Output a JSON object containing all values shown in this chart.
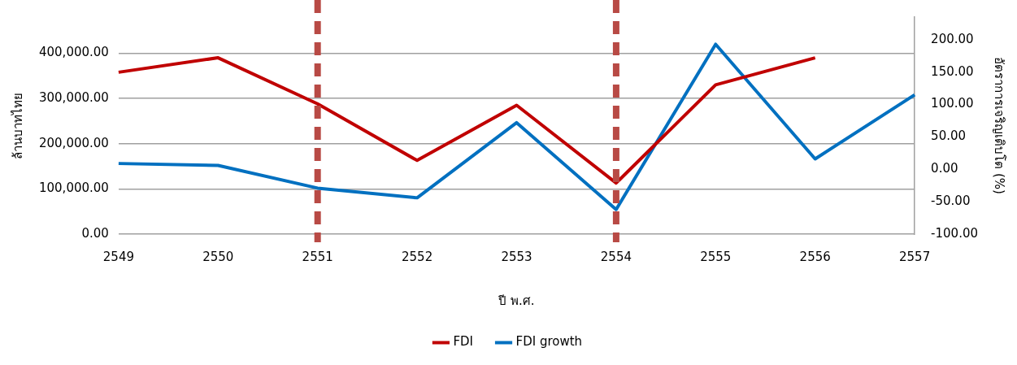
{
  "chart_data": {
    "type": "line",
    "xlabel": "ปี พ.ศ.",
    "ylabel": "ล้านบาทไทย",
    "y2label": "อัตราการเจริญเติบโต (%)",
    "categories": [
      "2549",
      "2550",
      "2551",
      "2552",
      "2553",
      "2554",
      "2555",
      "2556",
      "2557"
    ],
    "series": [
      {
        "name": "FDI",
        "color": "#c00000",
        "values": [
          358000,
          390000,
          288000,
          163000,
          285000,
          113000,
          330000,
          390000,
          null
        ]
      },
      {
        "name": "FDI growth",
        "color": "#0070c0",
        "axis": "y2",
        "values": [
          9,
          6,
          -29,
          -44,
          72,
          -62,
          193,
          16,
          115
        ]
      }
    ],
    "ylim": [
      0,
      480000
    ],
    "yticks": [
      {
        "value": 0,
        "label": "0.00"
      },
      {
        "value": 100000,
        "label": "100,000.00"
      },
      {
        "value": 200000,
        "label": "200,000.00"
      },
      {
        "value": 300000,
        "label": "300,000.00"
      },
      {
        "value": 400000,
        "label": "400,000.00"
      }
    ],
    "y2lim": [
      -100,
      235
    ],
    "y2ticks": [
      {
        "value": -100,
        "label": "-100.00"
      },
      {
        "value": -50,
        "label": "-50.00"
      },
      {
        "value": 0,
        "label": "0.00"
      },
      {
        "value": 50,
        "label": "50.00"
      },
      {
        "value": 100,
        "label": "100.00"
      },
      {
        "value": 150,
        "label": "150.00"
      },
      {
        "value": 200,
        "label": "200.00"
      }
    ],
    "ref_lines": [
      {
        "axis": "x",
        "value": "2551",
        "color": "#b84a45",
        "line_style": "dashed"
      },
      {
        "axis": "x",
        "value": "2554",
        "color": "#b84a45",
        "line_style": "dashed"
      }
    ],
    "grid": "y",
    "legend": "bottom",
    "marker": "none",
    "line_style": "solid"
  }
}
